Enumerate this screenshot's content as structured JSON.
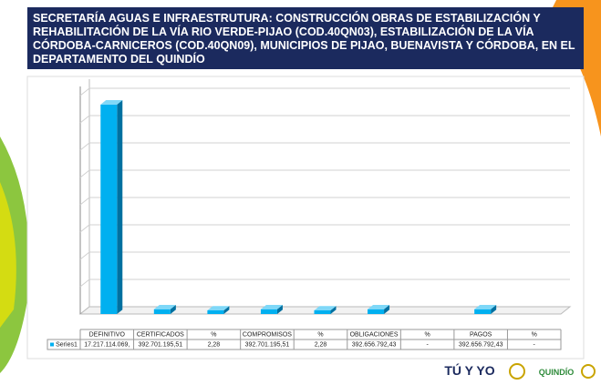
{
  "chart_data": {
    "type": "bar",
    "title": [
      "SECRETARÍA AGUAS E INFRAESTRUTURA: CONSTRUCCIÓN OBRAS DE ESTABILIZACIÓN Y",
      "REHABILITACIÓN DE LA VÍA RIO VERDE-PIJAO (COD.40QN03), ESTABILIZACIÓN DE LA VÍA",
      "CÓRDOBA-CARNICEROS (COD.40QN09), MUNICIPIOS DE PIJAO, BUENAVISTA Y CÓRDOBA, EN EL",
      "DEPARTAMENTO DEL QUINDÍO"
    ],
    "categories": [
      "DEFINITIVO",
      "CERTIFICADOS",
      "%",
      "COMPROMISOS",
      "%",
      "OBLIGACIONES",
      "%",
      "PAGOS",
      "%"
    ],
    "series": [
      {
        "name": "Series1",
        "color": "#00b0f0",
        "values": [
          17217114069,
          392701195.51,
          2.28,
          392701195.51,
          2.28,
          392656792.43,
          null,
          392656792.43,
          null
        ],
        "value_labels": [
          "17.217.114.069,",
          "392.701.195,51",
          "2,28",
          "392.701.195,51",
          "2,28",
          "392.656.792,43",
          "-",
          "392.656.792,43",
          "-"
        ]
      }
    ],
    "ylim": [
      0,
      18700000000
    ],
    "grid": true,
    "logos": [
      "TÚ Y YO",
      "QUINDÍO"
    ]
  }
}
